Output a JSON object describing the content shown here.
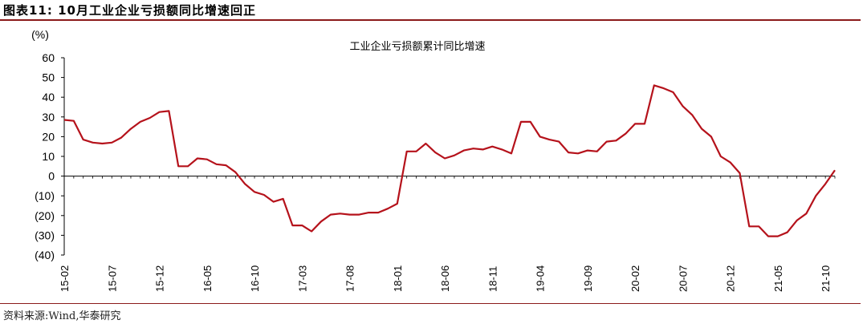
{
  "figure": {
    "title": "图表11:  10月工业企业亏损额同比增速回正",
    "source": "资料来源:Wind,华泰研究"
  },
  "chart_data": {
    "type": "line",
    "title": "工业企业亏损额累计同比增速",
    "yunit": "(%)",
    "ylim": [
      -40,
      60
    ],
    "yticks": [
      60,
      50,
      40,
      30,
      20,
      10,
      0,
      -10,
      -20,
      -30,
      -40
    ],
    "ytick_labels": [
      "60",
      "50",
      "40",
      "30",
      "20",
      "10",
      "0",
      "(10)",
      "(20)",
      "(30)",
      "(40)"
    ],
    "xtick_labels": [
      "15-02",
      "15-07",
      "15-12",
      "16-05",
      "16-10",
      "17-03",
      "17-08",
      "18-01",
      "18-06",
      "18-11",
      "19-04",
      "19-09",
      "20-02",
      "20-07",
      "20-12",
      "21-05",
      "21-10"
    ],
    "xtick_index": [
      0,
      5,
      10,
      15,
      20,
      25,
      30,
      35,
      40,
      45,
      50,
      55,
      60,
      65,
      70,
      75,
      80
    ],
    "series": [
      {
        "color": "#b5121b",
        "values": [
          28.5,
          28,
          18.5,
          17,
          16.5,
          17,
          19.5,
          24,
          27.5,
          29.5,
          32.5,
          33,
          5,
          5,
          9,
          8.5,
          6,
          5.5,
          2,
          -4,
          -8,
          -9.5,
          -13,
          -11.5,
          -25,
          -25,
          -28,
          -23,
          -19.5,
          -19,
          -19.5,
          -19.5,
          -18.5,
          -18.5,
          -16.5,
          -14,
          12.5,
          12.5,
          16.5,
          12,
          9,
          10.5,
          13,
          14,
          13.5,
          15,
          13.5,
          11.5,
          27.5,
          27.5,
          20,
          18.5,
          17.5,
          12,
          11.5,
          13,
          12.5,
          17.5,
          18,
          21.5,
          26.5,
          26.5,
          46,
          44.5,
          42.5,
          35.5,
          31,
          24,
          20,
          10,
          7,
          1.5,
          -25.5,
          -25.5,
          -30.5,
          -30.5,
          -28.5,
          -22.5,
          -19,
          -10,
          -4,
          3
        ]
      }
    ],
    "grid": false,
    "legend": "none"
  }
}
